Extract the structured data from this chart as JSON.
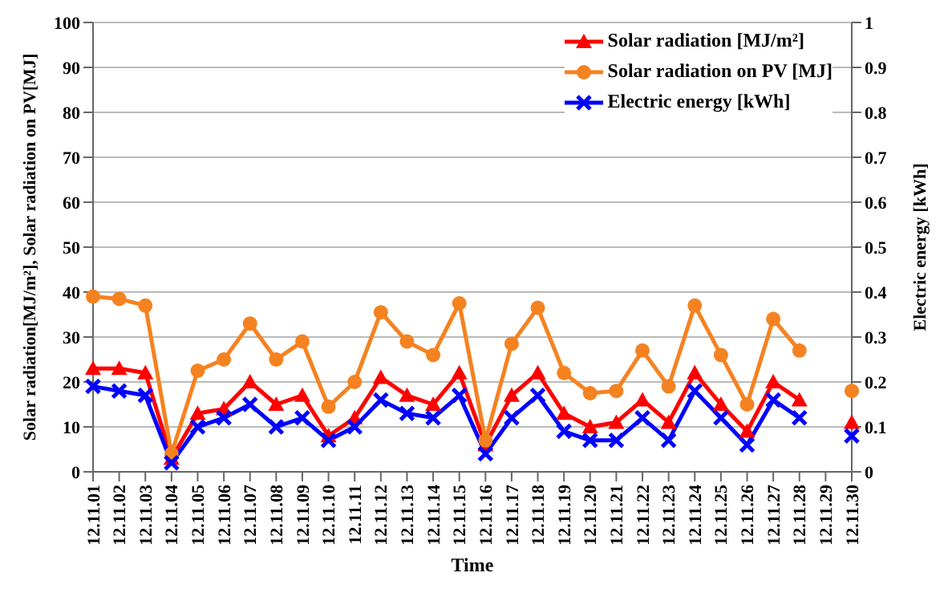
{
  "chart_data": {
    "type": "line",
    "xlabel": "Time",
    "ylabel": "Solar radiation[MJ/m²], Solar radiation on PV[MJ]",
    "y2label": "Electric energy [kWh]",
    "categories": [
      "12.11.01",
      "12.11.02",
      "12.11.03",
      "12.11.04",
      "12.11.05",
      "12.11.06",
      "12.11.07",
      "12.11.08",
      "12.11.09",
      "12.11.10",
      "12.11.11",
      "12.11.12",
      "12.11.13",
      "12.11.14",
      "12.11.15",
      "12.11.16",
      "12.11.17",
      "12.11.18",
      "12.11.19",
      "12.11.20",
      "12.11.21",
      "12.11.22",
      "12.11.23",
      "12.11.24",
      "12.11.25",
      "12.11.26",
      "12.11.27",
      "12.11.28",
      "12.11.29",
      "12.11.30"
    ],
    "series": [
      {
        "name": "Solar radiation [MJ/m²]",
        "color": "#ff0000",
        "marker": "triangle",
        "values": [
          23,
          23,
          22,
          3,
          13,
          14,
          20,
          15,
          17,
          8,
          12,
          21,
          17,
          15,
          22,
          6,
          17,
          22,
          13,
          10,
          11,
          16,
          11,
          22,
          15,
          9,
          20,
          16,
          null,
          11
        ]
      },
      {
        "name": "Solar radiation on PV [MJ]",
        "color": "#f58220",
        "marker": "circle",
        "values": [
          39,
          38.5,
          37,
          4,
          22.5,
          25,
          33,
          25,
          29,
          14.5,
          20,
          35.5,
          29,
          26,
          37.5,
          7,
          28.5,
          36.5,
          22,
          17.5,
          18,
          27,
          19,
          37,
          26,
          15,
          34,
          27,
          null,
          18
        ]
      },
      {
        "name": "Electric energy [kWh]",
        "color": "#0000ff",
        "marker": "cross",
        "axis": "y2",
        "values": [
          0.19,
          0.18,
          0.17,
          0.02,
          0.1,
          0.12,
          0.15,
          0.1,
          0.12,
          0.07,
          0.1,
          0.16,
          0.13,
          0.12,
          0.17,
          0.04,
          0.12,
          0.17,
          0.09,
          0.07,
          0.07,
          0.12,
          0.07,
          0.18,
          0.12,
          0.06,
          0.16,
          0.12,
          null,
          0.08
        ]
      }
    ],
    "ylim": [
      0,
      100
    ],
    "yticks": [
      0,
      10,
      20,
      30,
      40,
      50,
      60,
      70,
      80,
      90,
      100
    ],
    "y2lim": [
      0,
      1
    ],
    "y2ticks": [
      0,
      0.1,
      0.2,
      0.3,
      0.4,
      0.5,
      0.6,
      0.7,
      0.8,
      0.9,
      1
    ],
    "grid": "y",
    "legend": "top right"
  }
}
